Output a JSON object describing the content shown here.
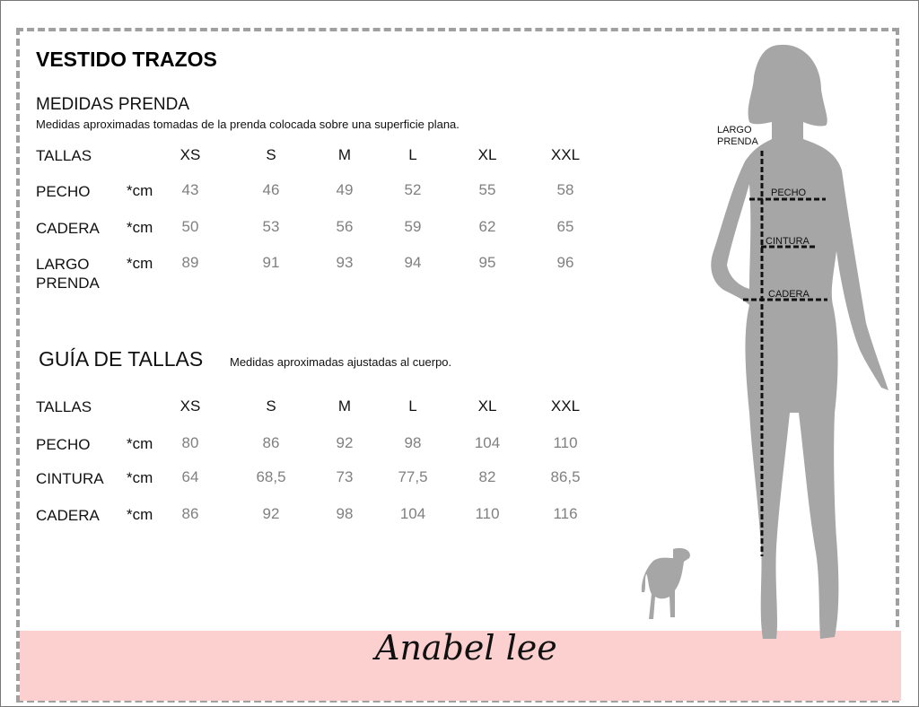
{
  "title": "VESTIDO TRAZOS",
  "garment": {
    "heading": "MEDIDAS PRENDA",
    "note": "Medidas aproximadas tomadas de la prenda colocada sobre una superficie plana.",
    "header_label": "TALLAS",
    "sizes": [
      "XS",
      "S",
      "M",
      "L",
      "XL",
      "XXL"
    ],
    "rows": [
      {
        "label": "PECHO",
        "unit": "*cm",
        "values": [
          "43",
          "46",
          "49",
          "52",
          "55",
          "58"
        ]
      },
      {
        "label": "CADERA",
        "unit": "*cm",
        "values": [
          "50",
          "53",
          "56",
          "59",
          "62",
          "65"
        ]
      },
      {
        "label": "LARGO PRENDA",
        "unit": "*cm",
        "values": [
          "89",
          "91",
          "93",
          "94",
          "95",
          "96"
        ]
      }
    ]
  },
  "guide": {
    "heading": "GUÍA DE TALLAS",
    "note": "Medidas aproximadas ajustadas al cuerpo.",
    "header_label": "TALLAS",
    "sizes": [
      "XS",
      "S",
      "M",
      "L",
      "XL",
      "XXL"
    ],
    "rows": [
      {
        "label": "PECHO",
        "unit": "*cm",
        "values": [
          "80",
          "86",
          "92",
          "98",
          "104",
          "110"
        ]
      },
      {
        "label": "CINTURA",
        "unit": "*cm",
        "values": [
          "64",
          "68,5",
          "73",
          "77,5",
          "82",
          "86,5"
        ]
      },
      {
        "label": "CADERA",
        "unit": "*cm",
        "values": [
          "86",
          "92",
          "98",
          "104",
          "110",
          "116"
        ]
      }
    ]
  },
  "figure": {
    "largo": "LARGO PRENDA",
    "pecho": "PECHO",
    "cintura": "CINTURA",
    "cadera": "CADERA"
  },
  "brand": "Anabel lee",
  "colors": {
    "band": "#fdd0d0",
    "silhouette": "#a6a6a6",
    "values": "#808080"
  }
}
